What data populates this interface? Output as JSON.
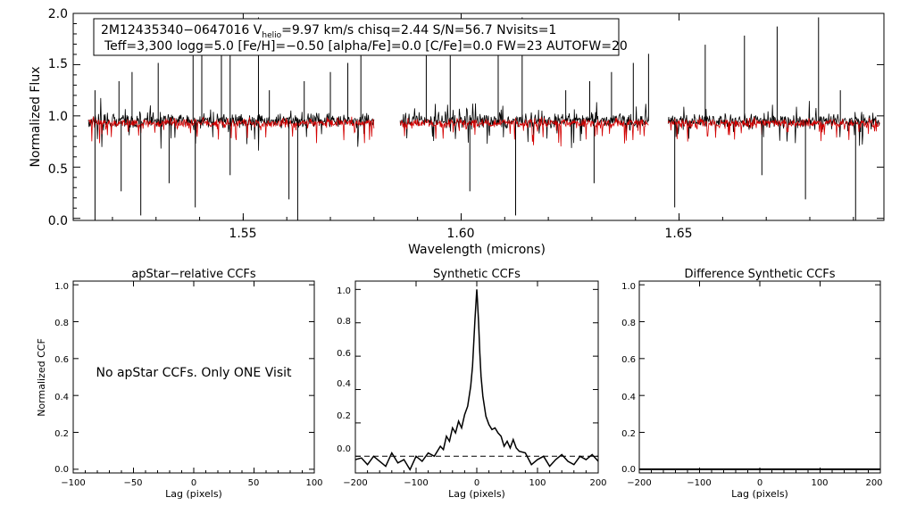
{
  "colors": {
    "observed": "#000000",
    "model": "#d40000",
    "axis": "#000000",
    "zero_line": "#000000"
  },
  "chart_data": [
    {
      "type": "line",
      "xlabel": "Wavelength (microns)",
      "ylabel": "Normalized Flux",
      "xlim": [
        1.511,
        1.697
      ],
      "ylim": [
        -0.02,
        2.0
      ],
      "xticks": [
        1.55,
        1.6,
        1.65
      ],
      "xtick_labels": [
        "1.55",
        "1.60",
        "1.65"
      ],
      "yticks": [
        0.0,
        0.5,
        1.0,
        1.5,
        2.0
      ],
      "ytick_labels": [
        "0.0",
        "0.5",
        "1.0",
        "1.5",
        "2.0"
      ],
      "chip_ranges": [
        [
          1.5145,
          1.58
        ],
        [
          1.586,
          1.643
        ],
        [
          1.6475,
          1.696
        ]
      ],
      "continuum_observed": 0.95,
      "continuum_model": 0.93,
      "series": [
        {
          "name": "observed spectrum",
          "color": "#000000"
        },
        {
          "name": "model spectrum",
          "color": "#d40000"
        }
      ],
      "emission_spikes_microns": [
        1.516,
        1.5215,
        1.5245,
        1.5305,
        1.5385,
        1.5405,
        1.545,
        1.547,
        1.5535,
        1.556,
        1.564,
        1.57,
        1.574,
        1.577,
        1.592,
        1.5975,
        1.6085,
        1.614,
        1.624,
        1.6295,
        1.6345,
        1.6395,
        1.643,
        1.656,
        1.665,
        1.6725,
        1.682,
        1.687
      ],
      "absorption_spikes_microns": [
        1.516,
        1.522,
        1.5265,
        1.533,
        1.539,
        1.547,
        1.5605,
        1.5625,
        1.602,
        1.6125,
        1.6305,
        1.649,
        1.669,
        1.679,
        1.6905
      ],
      "annotation": {
        "line1_prefix": "2M12435340−0647016  V",
        "line1_sub": "helio",
        "line1_rest": "=9.97 km/s  chisq=2.44  S/N=56.7  Nvisits=1",
        "line2": "Teff=3,300 logg=5.0 [Fe/H]=−0.50 [alpha/Fe]=0.0 [C/Fe]=0.0 FW=23 AUTOFW=20"
      }
    },
    {
      "type": "line",
      "title": "apStar−relative CCFs",
      "xlabel": "Lag (pixels)",
      "ylabel": "Normalized CCF",
      "xlim": [
        -100,
        100
      ],
      "ylim": [
        -0.02,
        1.02
      ],
      "xticks": [
        -100,
        -50,
        0,
        50,
        100
      ],
      "xtick_labels": [
        "−100",
        "−50",
        "0",
        "50",
        "100"
      ],
      "yticks": [
        0.0,
        0.2,
        0.4,
        0.6,
        0.8,
        1.0
      ],
      "ytick_labels": [
        "0.0",
        "0.2",
        "0.4",
        "0.6",
        "0.8",
        "1.0"
      ],
      "message": "No apStar CCFs.  Only ONE Visit"
    },
    {
      "type": "line",
      "title": "Synthetic CCFs",
      "xlabel": "Lag (pixels)",
      "xlim": [
        -200,
        200
      ],
      "ylim": [
        -0.1,
        1.05
      ],
      "xticks": [
        -200,
        -100,
        0,
        100,
        200
      ],
      "xtick_labels": [
        "−200",
        "−100",
        "0",
        "100",
        "200"
      ],
      "yticks": [
        0.0,
        0.2,
        0.4,
        0.6,
        0.8,
        1.0
      ],
      "ytick_labels": [
        "0.0",
        "0.2",
        "0.4",
        "0.6",
        "0.8",
        "1.0"
      ],
      "zero_line": 0.0,
      "series": [
        {
          "name": "synthetic CCF",
          "x": [
            -200,
            -190,
            -180,
            -170,
            -160,
            -150,
            -140,
            -130,
            -120,
            -110,
            -100,
            -90,
            -80,
            -70,
            -60,
            -55,
            -50,
            -45,
            -40,
            -35,
            -30,
            -25,
            -20,
            -15,
            -10,
            -7,
            -5,
            -3,
            -1,
            0,
            1,
            3,
            5,
            7,
            10,
            15,
            20,
            25,
            30,
            35,
            40,
            45,
            50,
            55,
            60,
            65,
            70,
            80,
            90,
            100,
            110,
            120,
            130,
            140,
            150,
            160,
            170,
            180,
            190,
            200
          ],
          "y": [
            -0.02,
            -0.01,
            -0.05,
            0.0,
            -0.03,
            -0.06,
            0.02,
            -0.04,
            -0.02,
            -0.08,
            0.0,
            -0.03,
            0.02,
            0.0,
            0.06,
            0.04,
            0.12,
            0.09,
            0.17,
            0.14,
            0.21,
            0.17,
            0.25,
            0.3,
            0.42,
            0.54,
            0.68,
            0.82,
            0.94,
            1.0,
            0.94,
            0.8,
            0.62,
            0.48,
            0.36,
            0.24,
            0.19,
            0.16,
            0.17,
            0.14,
            0.12,
            0.06,
            0.09,
            0.05,
            0.1,
            0.05,
            0.03,
            0.02,
            -0.05,
            -0.02,
            0.0,
            -0.06,
            -0.02,
            0.01,
            -0.03,
            -0.05,
            0.0,
            -0.02,
            0.01,
            -0.03
          ]
        }
      ]
    },
    {
      "type": "line",
      "title": "Difference Synthetic CCFs",
      "xlabel": "Lag (pixels)",
      "xlim": [
        -200,
        200
      ],
      "ylim": [
        -0.02,
        1.02
      ],
      "xticks": [
        -200,
        -100,
        0,
        100,
        200
      ],
      "xtick_labels": [
        "−200",
        "−100",
        "0",
        "100",
        "200"
      ],
      "yticks": [
        0.0,
        0.2,
        0.4,
        0.6,
        0.8,
        1.0
      ],
      "ytick_labels": [
        "0.0",
        "0.2",
        "0.4",
        "0.6",
        "0.8",
        "1.0"
      ],
      "series": [
        {
          "name": "difference CCF",
          "x": [
            -200,
            200
          ],
          "y": [
            0.0,
            0.0
          ]
        }
      ]
    }
  ]
}
